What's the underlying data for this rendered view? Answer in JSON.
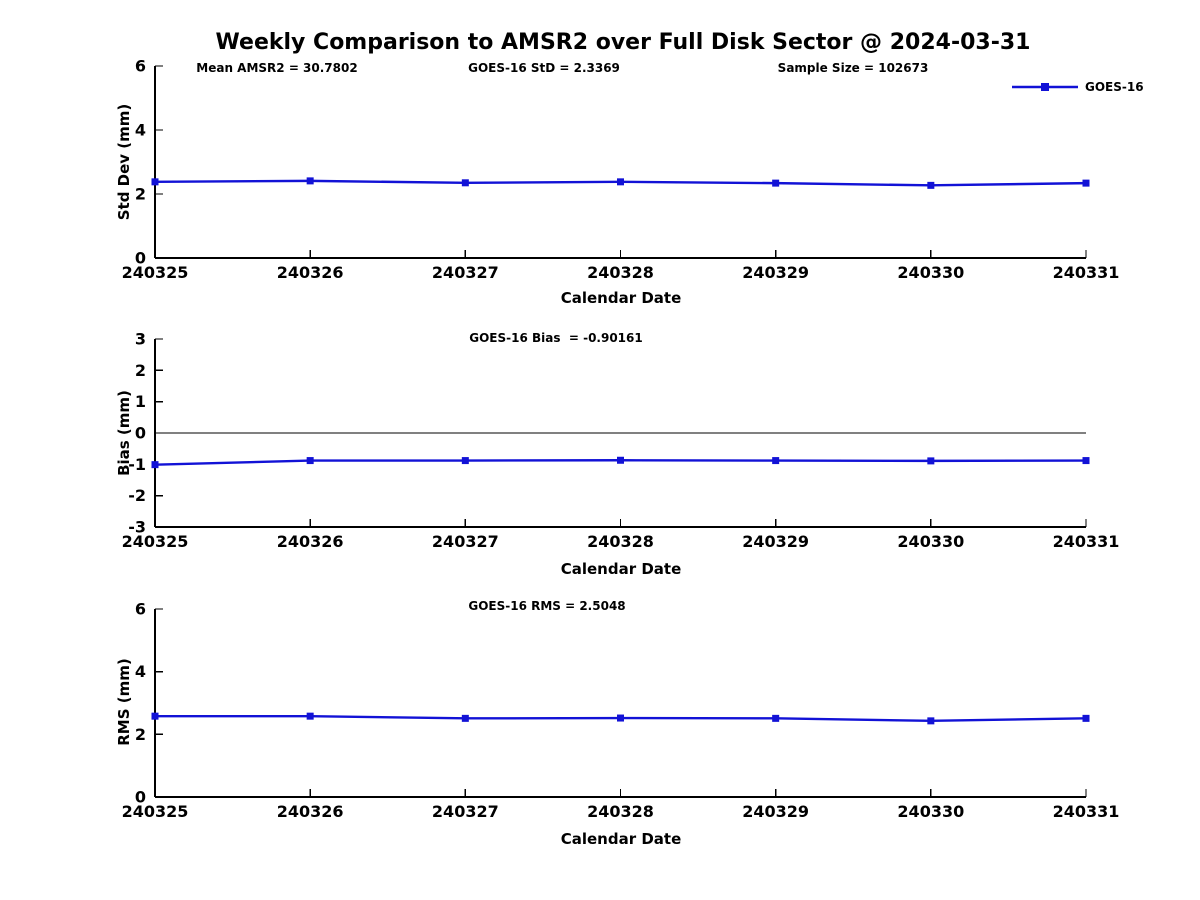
{
  "title": "Weekly Comparison to AMSR2 over Full Disk Sector @ 2024-03-31",
  "legend": {
    "label": "GOES-16"
  },
  "colors": {
    "line": "#1212d6",
    "axis": "#000000",
    "text": "#000000",
    "background": "#ffffff"
  },
  "chart_data": [
    {
      "type": "line",
      "ylabel": "Std Dev (mm)",
      "xlabel": "Calendar Date",
      "categories": [
        "240325",
        "240326",
        "240327",
        "240328",
        "240329",
        "240330",
        "240331"
      ],
      "series": [
        {
          "name": "GOES-16",
          "values": [
            2.38,
            2.41,
            2.35,
            2.38,
            2.34,
            2.27,
            2.34
          ]
        }
      ],
      "ylim": [
        0,
        6
      ],
      "yticks": [
        0,
        2,
        4,
        6
      ],
      "grid": false,
      "legend_position": "top-right-outside",
      "annotations": [
        "Mean AMSR2 = 30.7802",
        "GOES-16 StD = 2.3369",
        "Sample Size = 102673"
      ]
    },
    {
      "type": "line",
      "ylabel": "Bias (mm)",
      "xlabel": "Calendar Date",
      "categories": [
        "240325",
        "240326",
        "240327",
        "240328",
        "240329",
        "240330",
        "240331"
      ],
      "series": [
        {
          "name": "GOES-16",
          "values": [
            -1.01,
            -0.88,
            -0.88,
            -0.87,
            -0.88,
            -0.89,
            -0.88
          ]
        }
      ],
      "ylim": [
        -3,
        3
      ],
      "yticks": [
        -3,
        -2,
        -1,
        0,
        1,
        2,
        3
      ],
      "ref_line_y": 0,
      "grid": false,
      "annotations": [
        "GOES-16 Bias  = -0.90161"
      ]
    },
    {
      "type": "line",
      "ylabel": "RMS (mm)",
      "xlabel": "Calendar Date",
      "categories": [
        "240325",
        "240326",
        "240327",
        "240328",
        "240329",
        "240330",
        "240331"
      ],
      "series": [
        {
          "name": "GOES-16",
          "values": [
            2.58,
            2.58,
            2.51,
            2.52,
            2.51,
            2.43,
            2.51
          ]
        }
      ],
      "ylim": [
        0,
        6
      ],
      "yticks": [
        0,
        2,
        4,
        6
      ],
      "grid": false,
      "annotations": [
        "GOES-16 RMS = 2.5048"
      ]
    }
  ]
}
